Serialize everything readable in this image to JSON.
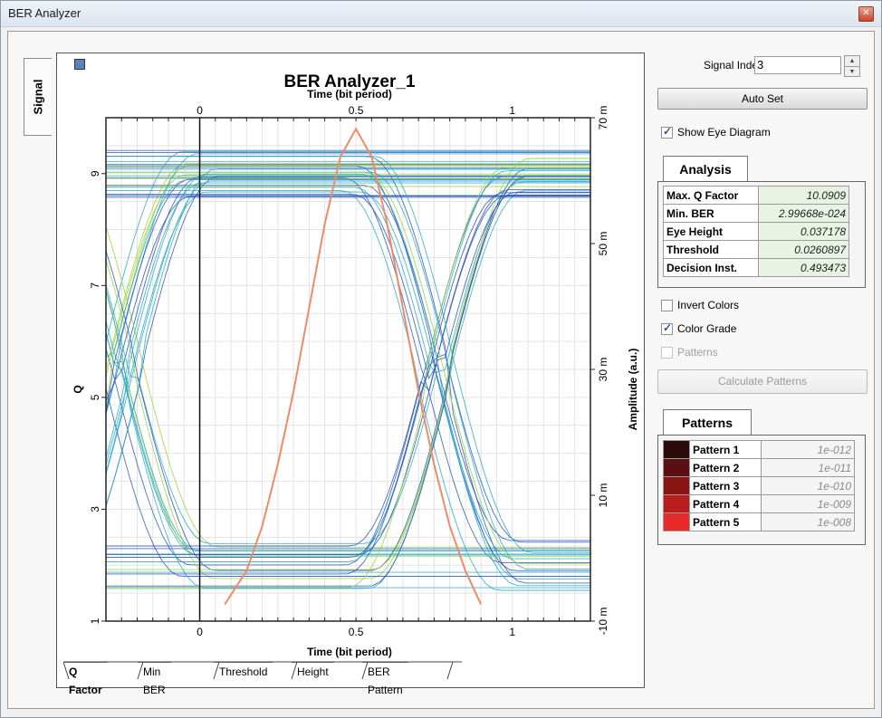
{
  "window": {
    "title": "BER Analyzer",
    "close_icon": "close-icon"
  },
  "side_tab": {
    "label": "Signal"
  },
  "plot": {
    "title": "BER Analyzer_1",
    "top_axis_label": "Time (bit period)",
    "bottom_axis_label": "Time (bit period)",
    "left_axis_label": "Q",
    "right_axis_label": "Amplitude (a.u.)",
    "x_ticks": [
      "0",
      "0.5",
      "1"
    ],
    "left_ticks": [
      "9",
      "7",
      "5",
      "3",
      "1"
    ],
    "right_ticks": [
      "70 m",
      "50 m",
      "30 m",
      "10 m",
      "-10 m"
    ]
  },
  "chart_data": {
    "type": "line",
    "title": "BER Analyzer_1",
    "xlabel": "Time (bit period)",
    "ylabel": "Q",
    "y2label": "Amplitude (a.u.)",
    "xlim": [
      -0.3,
      1.25
    ],
    "ylim_left": [
      1,
      10
    ],
    "ylim_right": [
      -10,
      70
    ],
    "grid": true,
    "series": [
      {
        "x": [
          0.08,
          0.15,
          0.2,
          0.25,
          0.3,
          0.35,
          0.4,
          0.45,
          0.5,
          0.55,
          0.6,
          0.65,
          0.7,
          0.75,
          0.8,
          0.85,
          0.9
        ],
        "y": [
          1.3,
          1.9,
          2.7,
          3.8,
          5.1,
          6.6,
          8.1,
          9.3,
          9.8,
          9.3,
          8.1,
          6.6,
          5.1,
          3.8,
          2.7,
          1.9,
          1.3
        ]
      }
    ],
    "eye_diagram": true,
    "colors": {
      "q_curve": "#f08a66",
      "eye_low": "#2a55b8",
      "eye_mid": "#2aa8c8",
      "eye_high": "#9ad23a"
    }
  },
  "bottom_tabs": [
    {
      "label": "Q Factor",
      "active": true
    },
    {
      "label": "Min BER"
    },
    {
      "label": "Threshold"
    },
    {
      "label": "Height"
    },
    {
      "label": "BER Pattern"
    }
  ],
  "controls": {
    "signal_index_label": "Signal Index:",
    "signal_index_value": "3",
    "auto_set_label": "Auto Set",
    "show_eye_label": "Show Eye Diagram",
    "show_eye_checked": true,
    "invert_colors_label": "Invert Colors",
    "invert_colors_checked": false,
    "color_grade_label": "Color Grade",
    "color_grade_checked": true,
    "patterns_label": "Patterns",
    "patterns_checked": false,
    "calculate_patterns_label": "Calculate Patterns"
  },
  "analysis": {
    "tab_label": "Analysis",
    "rows": [
      {
        "key": "Max. Q Factor",
        "value": "10.0909"
      },
      {
        "key": "Min. BER",
        "value": "2.99668e-024"
      },
      {
        "key": "Eye Height",
        "value": "0.037178"
      },
      {
        "key": "Threshold",
        "value": "0.0260897"
      },
      {
        "key": "Decision Inst.",
        "value": "0.493473"
      }
    ]
  },
  "patterns": {
    "tab_label": "Patterns",
    "rows": [
      {
        "key": "Pattern 1",
        "value": "1e-012",
        "color": "#2a0a0a"
      },
      {
        "key": "Pattern 2",
        "value": "1e-011",
        "color": "#5a1010"
      },
      {
        "key": "Pattern 3",
        "value": "1e-010",
        "color": "#8a1414"
      },
      {
        "key": "Pattern 4",
        "value": "1e-009",
        "color": "#b81c1c"
      },
      {
        "key": "Pattern 5",
        "value": "1e-008",
        "color": "#e82a2a"
      }
    ]
  }
}
